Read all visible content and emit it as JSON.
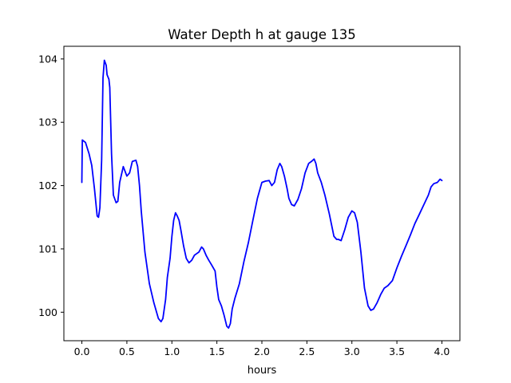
{
  "chart_data": {
    "type": "line",
    "title": "Water Depth h at gauge 135",
    "xlabel": "hours",
    "ylabel": "",
    "xlim": [
      -0.2,
      4.2
    ],
    "ylim": [
      99.55,
      104.2
    ],
    "xticks": [
      0.0,
      0.5,
      1.0,
      1.5,
      2.0,
      2.5,
      3.0,
      3.5,
      4.0
    ],
    "xtick_labels": [
      "0.0",
      "0.5",
      "1.0",
      "1.5",
      "2.0",
      "2.5",
      "3.0",
      "3.5",
      "4.0"
    ],
    "yticks": [
      100,
      101,
      102,
      103,
      104
    ],
    "ytick_labels": [
      "100",
      "101",
      "102",
      "103",
      "104"
    ],
    "grid": false,
    "legend": "none",
    "series": [
      {
        "color": "#0000ff",
        "x": [
          0.0,
          0.005,
          0.04,
          0.08,
          0.11,
          0.14,
          0.17,
          0.185,
          0.2,
          0.22,
          0.235,
          0.25,
          0.27,
          0.28,
          0.3,
          0.31,
          0.33,
          0.35,
          0.38,
          0.4,
          0.42,
          0.46,
          0.5,
          0.53,
          0.56,
          0.6,
          0.62,
          0.64,
          0.66,
          0.7,
          0.75,
          0.8,
          0.85,
          0.88,
          0.9,
          0.93,
          0.95,
          0.98,
          1.0,
          1.02,
          1.04,
          1.06,
          1.08,
          1.1,
          1.13,
          1.16,
          1.19,
          1.22,
          1.25,
          1.27,
          1.3,
          1.33,
          1.35,
          1.38,
          1.41,
          1.44,
          1.48,
          1.5,
          1.52,
          1.55,
          1.58,
          1.61,
          1.63,
          1.65,
          1.67,
          1.7,
          1.75,
          1.8,
          1.85,
          1.9,
          1.95,
          2.0,
          2.04,
          2.08,
          2.11,
          2.14,
          2.17,
          2.2,
          2.22,
          2.25,
          2.28,
          2.3,
          2.33,
          2.36,
          2.4,
          2.44,
          2.48,
          2.52,
          2.55,
          2.58,
          2.6,
          2.62,
          2.66,
          2.7,
          2.75,
          2.8,
          2.83,
          2.85,
          2.88,
          2.92,
          2.96,
          3.0,
          3.03,
          3.06,
          3.1,
          3.14,
          3.18,
          3.21,
          3.24,
          3.28,
          3.32,
          3.36,
          3.4,
          3.45,
          3.5,
          3.55,
          3.6,
          3.65,
          3.7,
          3.75,
          3.8,
          3.85,
          3.88,
          3.91,
          3.95,
          3.98,
          4.0
        ],
        "values": [
          102.05,
          102.72,
          102.68,
          102.5,
          102.32,
          101.95,
          101.52,
          101.5,
          101.65,
          102.4,
          103.7,
          103.98,
          103.9,
          103.75,
          103.68,
          103.55,
          102.5,
          101.85,
          101.73,
          101.75,
          102.05,
          102.3,
          102.15,
          102.2,
          102.38,
          102.4,
          102.3,
          102.0,
          101.6,
          100.95,
          100.45,
          100.15,
          99.9,
          99.85,
          99.9,
          100.2,
          100.55,
          100.85,
          101.2,
          101.45,
          101.57,
          101.52,
          101.45,
          101.3,
          101.05,
          100.85,
          100.78,
          100.82,
          100.9,
          100.92,
          100.95,
          101.03,
          101.0,
          100.9,
          100.82,
          100.75,
          100.65,
          100.4,
          100.2,
          100.1,
          99.95,
          99.78,
          99.75,
          99.82,
          100.05,
          100.22,
          100.45,
          100.8,
          101.1,
          101.45,
          101.8,
          102.05,
          102.07,
          102.08,
          102.0,
          102.05,
          102.25,
          102.35,
          102.3,
          102.15,
          101.95,
          101.8,
          101.7,
          101.68,
          101.78,
          101.95,
          102.2,
          102.35,
          102.38,
          102.42,
          102.35,
          102.2,
          102.05,
          101.85,
          101.55,
          101.2,
          101.15,
          101.15,
          101.13,
          101.3,
          101.5,
          101.6,
          101.57,
          101.42,
          100.95,
          100.38,
          100.1,
          100.03,
          100.05,
          100.15,
          100.28,
          100.38,
          100.42,
          100.5,
          100.7,
          100.88,
          101.05,
          101.22,
          101.4,
          101.55,
          101.7,
          101.85,
          101.98,
          102.03,
          102.05,
          102.1,
          102.08
        ]
      }
    ]
  }
}
